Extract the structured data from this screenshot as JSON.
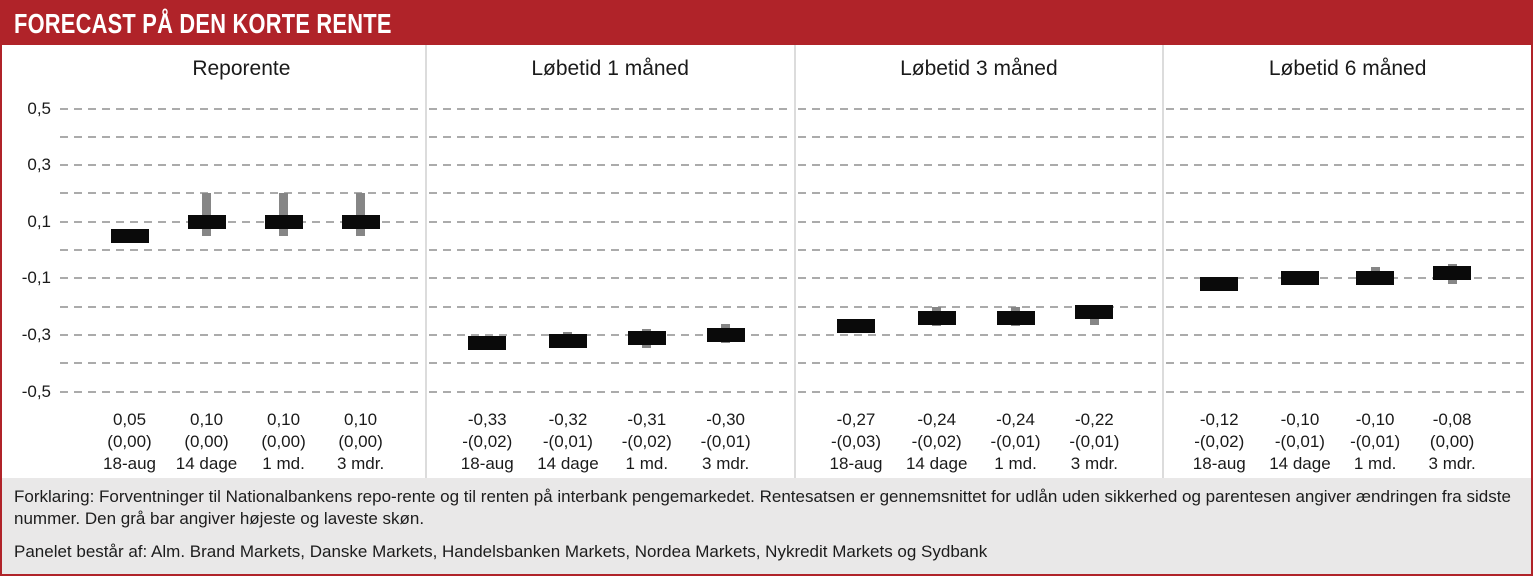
{
  "header": {
    "title": "FORECAST PÅ DEN KORTE RENTE"
  },
  "colors": {
    "accent_red": "#B02329",
    "bar_black": "#0A0A0A",
    "range_gray": "#868686",
    "gridline_gray": "#ABABAB",
    "separator_gray": "#DCDCDC",
    "footer_bg": "#E9E8E8"
  },
  "footer": {
    "explanation": "Forklaring: Forventninger til Nationalbankens repo-rente og til renten på interbank pengemarkedet. Rentesatsen er gennemsnittet for udlån uden sikkerhed og parentesen angiver ændringen fra sidste nummer. Den grå bar angiver højeste og laveste skøn.",
    "panel_note": "Panelet består af: Alm. Brand Markets, Danske Markets, Handelsbanken Markets, Nordea Markets, Nykredit Markets og Sydbank"
  },
  "chart_data": {
    "type": "bar",
    "title": "FORECAST PÅ DEN KORTE RENTE",
    "ylim": [
      -0.5,
      0.5
    ],
    "grid_step": 0.1,
    "grid": "dashed-horizontal",
    "legend_position": "none",
    "ytick_values": [
      0.5,
      0.3,
      0.1,
      -0.1,
      -0.3,
      -0.5
    ],
    "ytick_labels": [
      "0,5",
      "0,3",
      "0,1",
      "-0,1",
      "-0,3",
      "-0,5"
    ],
    "note": "black bar = consensus forecast, gray bar = highest/lowest estimate",
    "panels": [
      {
        "title": "Reporente",
        "points": [
          {
            "period": "18-aug",
            "value": 0.05,
            "value_label": "0,05",
            "change_label": "(0,00)",
            "range_hi": null,
            "range_lo": null
          },
          {
            "period": "14 dage",
            "value": 0.1,
            "value_label": "0,10",
            "change_label": "(0,00)",
            "range_hi": 0.2,
            "range_lo": 0.05
          },
          {
            "period": "1 md.",
            "value": 0.1,
            "value_label": "0,10",
            "change_label": "(0,00)",
            "range_hi": 0.2,
            "range_lo": 0.05
          },
          {
            "period": "3 mdr.",
            "value": 0.1,
            "value_label": "0,10",
            "change_label": "(0,00)",
            "range_hi": 0.2,
            "range_lo": 0.05
          }
        ]
      },
      {
        "title": "Løbetid 1 måned",
        "points": [
          {
            "period": "18-aug",
            "value": -0.33,
            "value_label": "-0,33",
            "change_label": "-(0,02)",
            "range_hi": null,
            "range_lo": null
          },
          {
            "period": "14 dage",
            "value": -0.32,
            "value_label": "-0,32",
            "change_label": "-(0,01)",
            "range_hi": -0.29,
            "range_lo": -0.34
          },
          {
            "period": "1 md.",
            "value": -0.31,
            "value_label": "-0,31",
            "change_label": "-(0,02)",
            "range_hi": -0.28,
            "range_lo": -0.345
          },
          {
            "period": "3 mdr.",
            "value": -0.3,
            "value_label": "-0,30",
            "change_label": "-(0,01)",
            "range_hi": -0.26,
            "range_lo": -0.33
          }
        ]
      },
      {
        "title": "Løbetid 3 måned",
        "points": [
          {
            "period": "18-aug",
            "value": -0.27,
            "value_label": "-0,27",
            "change_label": "-(0,03)",
            "range_hi": null,
            "range_lo": null
          },
          {
            "period": "14 dage",
            "value": -0.24,
            "value_label": "-0,24",
            "change_label": "-(0,02)",
            "range_hi": -0.2,
            "range_lo": -0.27
          },
          {
            "period": "1 md.",
            "value": -0.24,
            "value_label": "-0,24",
            "change_label": "-(0,01)",
            "range_hi": -0.2,
            "range_lo": -0.27
          },
          {
            "period": "3 mdr.",
            "value": -0.22,
            "value_label": "-0,22",
            "change_label": "-(0,01)",
            "range_hi": -0.2,
            "range_lo": -0.265
          }
        ]
      },
      {
        "title": "Løbetid 6 måned",
        "points": [
          {
            "period": "18-aug",
            "value": -0.12,
            "value_label": "-0,12",
            "change_label": "-(0,02)",
            "range_hi": null,
            "range_lo": null
          },
          {
            "period": "14 dage",
            "value": -0.1,
            "value_label": "-0,10",
            "change_label": "-(0,01)",
            "range_hi": -0.075,
            "range_lo": -0.12
          },
          {
            "period": "1 md.",
            "value": -0.1,
            "value_label": "-0,10",
            "change_label": "-(0,01)",
            "range_hi": -0.06,
            "range_lo": -0.12
          },
          {
            "period": "3 mdr.",
            "value": -0.08,
            "value_label": "-0,08",
            "change_label": "(0,00)",
            "range_hi": -0.05,
            "range_lo": -0.12
          }
        ]
      }
    ]
  }
}
